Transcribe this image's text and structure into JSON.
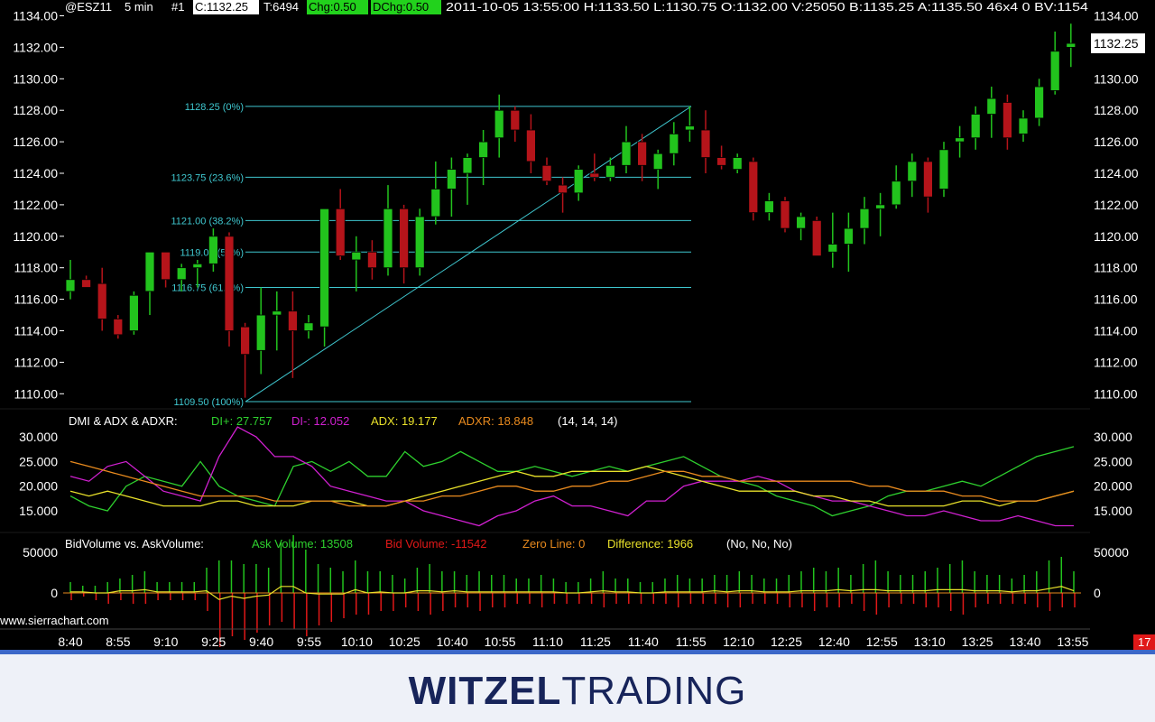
{
  "header": {
    "symbol": "@ESZ11",
    "interval": "5 min",
    "chart_no": "#1",
    "close": "C:1132.25",
    "trades": "T:6494",
    "chg": "Chg:0.50",
    "dchg": "DChg:0.50",
    "bar_info": "2011-10-05  13:55:00  H:1133.50  L:1130.75  O:1132.00  V:25050  B:1135.25  A:1135.50  46x4  0  BV:1154"
  },
  "current_price_label": "1132.25",
  "corner_badge": "17",
  "watermark": "www.sierrachart.com",
  "brand": {
    "part1": "WITZEL",
    "part2": "TRADING"
  },
  "colors": {
    "up": "#22c31d",
    "down": "#b5141a",
    "fib": "#3fc7cf",
    "di_plus": "#2ed02e",
    "di_minus": "#d020d0",
    "adx": "#e8e02a",
    "adxr": "#e88a1e"
  },
  "price_axis": {
    "ticks": [
      "1134.00",
      "1132.00",
      "1130.00",
      "1128.00",
      "1126.00",
      "1124.00",
      "1122.00",
      "1120.00",
      "1118.00",
      "1116.00",
      "1114.00",
      "1112.00",
      "1110.00"
    ]
  },
  "time_axis": {
    "labels": [
      "8:40",
      "8:55",
      "9:10",
      "9:25",
      "9:40",
      "9:55",
      "10:10",
      "10:25",
      "10:40",
      "10:55",
      "11:10",
      "11:25",
      "11:40",
      "11:55",
      "12:10",
      "12:25",
      "12:40",
      "12:55",
      "13:10",
      "13:25",
      "13:40",
      "13:55"
    ]
  },
  "fib_levels": [
    {
      "label": "1128.25 (0%)",
      "price": 1128.25
    },
    {
      "label": "1123.75 (23.6%)",
      "price": 1123.75
    },
    {
      "label": "1121.00 (38.2%)",
      "price": 1121.0
    },
    {
      "label": "1119.00 (50%)",
      "price": 1119.0
    },
    {
      "label": "1116.75 (61.8%)",
      "price": 1116.75
    },
    {
      "label": "1109.50 (100%)",
      "price": 1109.5
    }
  ],
  "dmi": {
    "title": "DMI & ADX & ADXR:",
    "di_plus": "DI+: 27.757",
    "di_minus": "DI-: 12.052",
    "adx": "ADX: 19.177",
    "adxr": "ADXR: 18.848",
    "params": "(14, 14, 14)",
    "ticks": [
      "30.000",
      "25.000",
      "20.000",
      "15.000"
    ]
  },
  "volume": {
    "title": "BidVolume vs. AskVolume:",
    "ask": "Ask Volume: 13508",
    "bid": "Bid Volume: -11542",
    "zero": "Zero Line: 0",
    "diff": "Difference: 1966",
    "params": "(No, No, No)",
    "ticks": [
      "50000",
      "0"
    ]
  },
  "chart_data": [
    {
      "type": "candlestick",
      "title": "@ESZ11 5 min",
      "ylim": [
        1109.5,
        1134.0
      ],
      "candles": [
        {
          "o": 1116.5,
          "h": 1118.5,
          "l": 1116.0,
          "c": 1117.25
        },
        {
          "o": 1117.25,
          "h": 1117.5,
          "l": 1116.75,
          "c": 1116.75
        },
        {
          "o": 1117.0,
          "h": 1118.0,
          "l": 1114.0,
          "c": 1114.75
        },
        {
          "o": 1114.75,
          "h": 1115.0,
          "l": 1113.5,
          "c": 1113.75
        },
        {
          "o": 1114.0,
          "h": 1116.5,
          "l": 1113.75,
          "c": 1116.25
        },
        {
          "o": 1116.5,
          "h": 1119.0,
          "l": 1115.0,
          "c": 1119.0
        },
        {
          "o": 1119.0,
          "h": 1119.0,
          "l": 1116.75,
          "c": 1117.25
        },
        {
          "o": 1117.25,
          "h": 1118.25,
          "l": 1116.5,
          "c": 1118.0
        },
        {
          "o": 1118.0,
          "h": 1118.5,
          "l": 1116.75,
          "c": 1118.25
        },
        {
          "o": 1118.25,
          "h": 1120.5,
          "l": 1117.75,
          "c": 1120.0
        },
        {
          "o": 1120.0,
          "h": 1120.25,
          "l": 1113.0,
          "c": 1114.0
        },
        {
          "o": 1114.25,
          "h": 1114.5,
          "l": 1109.75,
          "c": 1112.5
        },
        {
          "o": 1112.75,
          "h": 1116.75,
          "l": 1111.25,
          "c": 1115.0
        },
        {
          "o": 1115.0,
          "h": 1116.5,
          "l": 1112.75,
          "c": 1115.25
        },
        {
          "o": 1115.25,
          "h": 1116.5,
          "l": 1111.0,
          "c": 1114.0
        },
        {
          "o": 1114.0,
          "h": 1115.0,
          "l": 1113.5,
          "c": 1114.5
        },
        {
          "o": 1114.25,
          "h": 1121.75,
          "l": 1113.0,
          "c": 1121.75
        },
        {
          "o": 1121.75,
          "h": 1123.0,
          "l": 1118.5,
          "c": 1118.75
        },
        {
          "o": 1118.5,
          "h": 1120.0,
          "l": 1116.5,
          "c": 1119.0
        },
        {
          "o": 1119.0,
          "h": 1119.75,
          "l": 1117.25,
          "c": 1118.0
        },
        {
          "o": 1118.0,
          "h": 1123.25,
          "l": 1117.5,
          "c": 1121.75
        },
        {
          "o": 1121.75,
          "h": 1122.0,
          "l": 1117.0,
          "c": 1118.0
        },
        {
          "o": 1118.0,
          "h": 1121.75,
          "l": 1117.5,
          "c": 1121.25
        },
        {
          "o": 1121.25,
          "h": 1124.75,
          "l": 1120.75,
          "c": 1123.0
        },
        {
          "o": 1123.0,
          "h": 1125.0,
          "l": 1121.25,
          "c": 1124.25
        },
        {
          "o": 1124.0,
          "h": 1125.25,
          "l": 1122.0,
          "c": 1125.0
        },
        {
          "o": 1125.0,
          "h": 1126.75,
          "l": 1123.25,
          "c": 1126.0
        },
        {
          "o": 1126.25,
          "h": 1129.0,
          "l": 1125.0,
          "c": 1128.0
        },
        {
          "o": 1128.0,
          "h": 1128.25,
          "l": 1126.0,
          "c": 1126.75
        },
        {
          "o": 1126.75,
          "h": 1127.75,
          "l": 1124.0,
          "c": 1124.75
        },
        {
          "o": 1124.5,
          "h": 1125.0,
          "l": 1123.25,
          "c": 1123.5
        },
        {
          "o": 1123.25,
          "h": 1123.75,
          "l": 1121.5,
          "c": 1122.75
        },
        {
          "o": 1122.75,
          "h": 1124.5,
          "l": 1122.25,
          "c": 1124.25
        },
        {
          "o": 1124.0,
          "h": 1125.25,
          "l": 1123.5,
          "c": 1123.75
        },
        {
          "o": 1123.75,
          "h": 1125.0,
          "l": 1123.5,
          "c": 1124.5
        },
        {
          "o": 1124.5,
          "h": 1127.0,
          "l": 1124.0,
          "c": 1126.0
        },
        {
          "o": 1126.0,
          "h": 1126.5,
          "l": 1123.5,
          "c": 1124.5
        },
        {
          "o": 1124.25,
          "h": 1125.5,
          "l": 1123.0,
          "c": 1125.25
        },
        {
          "o": 1125.25,
          "h": 1127.25,
          "l": 1124.5,
          "c": 1126.5
        },
        {
          "o": 1126.75,
          "h": 1128.25,
          "l": 1126.0,
          "c": 1127.0
        },
        {
          "o": 1126.75,
          "h": 1128.0,
          "l": 1124.0,
          "c": 1125.0
        },
        {
          "o": 1125.0,
          "h": 1125.75,
          "l": 1124.25,
          "c": 1124.5
        },
        {
          "o": 1124.25,
          "h": 1125.25,
          "l": 1124.0,
          "c": 1125.0
        },
        {
          "o": 1124.75,
          "h": 1125.0,
          "l": 1121.0,
          "c": 1121.5
        },
        {
          "o": 1121.5,
          "h": 1122.75,
          "l": 1121.0,
          "c": 1122.25
        },
        {
          "o": 1122.25,
          "h": 1122.5,
          "l": 1120.25,
          "c": 1120.5
        },
        {
          "o": 1120.5,
          "h": 1121.5,
          "l": 1119.75,
          "c": 1121.25
        },
        {
          "o": 1121.0,
          "h": 1121.25,
          "l": 1118.75,
          "c": 1118.75
        },
        {
          "o": 1119.0,
          "h": 1121.5,
          "l": 1118.0,
          "c": 1119.5
        },
        {
          "o": 1119.5,
          "h": 1121.5,
          "l": 1117.75,
          "c": 1120.5
        },
        {
          "o": 1120.5,
          "h": 1122.5,
          "l": 1119.5,
          "c": 1121.75
        },
        {
          "o": 1121.75,
          "h": 1122.75,
          "l": 1120.0,
          "c": 1122.0
        },
        {
          "o": 1122.0,
          "h": 1124.5,
          "l": 1121.75,
          "c": 1123.5
        },
        {
          "o": 1123.5,
          "h": 1125.25,
          "l": 1122.5,
          "c": 1124.75
        },
        {
          "o": 1124.75,
          "h": 1125.0,
          "l": 1121.5,
          "c": 1122.5
        },
        {
          "o": 1123.0,
          "h": 1126.0,
          "l": 1122.5,
          "c": 1125.5
        },
        {
          "o": 1126.0,
          "h": 1127.0,
          "l": 1125.0,
          "c": 1126.25
        },
        {
          "o": 1126.25,
          "h": 1128.25,
          "l": 1125.5,
          "c": 1127.75
        },
        {
          "o": 1127.75,
          "h": 1129.5,
          "l": 1126.25,
          "c": 1128.75
        },
        {
          "o": 1128.5,
          "h": 1129.0,
          "l": 1125.5,
          "c": 1126.25
        },
        {
          "o": 1126.5,
          "h": 1128.0,
          "l": 1126.0,
          "c": 1127.5
        },
        {
          "o": 1127.5,
          "h": 1130.0,
          "l": 1127.0,
          "c": 1129.5
        },
        {
          "o": 1129.25,
          "h": 1133.0,
          "l": 1129.0,
          "c": 1131.75
        },
        {
          "o": 1132.0,
          "h": 1133.5,
          "l": 1130.75,
          "c": 1132.25
        }
      ]
    },
    {
      "type": "line",
      "title": "DMI & ADX & ADXR",
      "ylim": [
        12,
        32
      ],
      "series": [
        {
          "name": "DI+",
          "values": [
            18,
            16,
            15,
            20,
            22,
            21,
            20,
            25,
            20,
            18,
            17,
            16,
            24,
            25,
            23,
            25,
            22,
            22,
            27,
            24,
            25,
            27,
            25,
            23,
            23,
            24,
            23,
            22,
            23,
            24,
            23,
            24,
            25,
            26,
            24,
            22,
            21,
            20,
            18,
            17,
            16,
            14,
            15,
            16,
            18,
            19,
            19,
            20,
            21,
            20,
            22,
            24,
            26,
            27,
            28
          ]
        },
        {
          "name": "DI-",
          "values": [
            22,
            21,
            24,
            25,
            22,
            19,
            18,
            17,
            26,
            32,
            30,
            26,
            26,
            24,
            20,
            19,
            18,
            17,
            17,
            15,
            14,
            13,
            12,
            14,
            15,
            17,
            18,
            16,
            16,
            15,
            14,
            17,
            17,
            20,
            21,
            21,
            21,
            22,
            21,
            19,
            18,
            17,
            17,
            16,
            15,
            14,
            14,
            15,
            14,
            13,
            13,
            14,
            13,
            12,
            12
          ]
        },
        {
          "name": "ADX",
          "values": [
            19,
            18,
            19,
            18,
            17,
            16,
            16,
            16,
            17,
            17,
            16,
            16,
            16,
            17,
            17,
            17,
            16,
            16,
            17,
            18,
            19,
            20,
            21,
            22,
            23,
            22,
            22,
            23,
            23,
            23,
            23,
            24,
            23,
            22,
            21,
            20,
            19,
            19,
            19,
            19,
            18,
            18,
            17,
            17,
            16,
            16,
            16,
            16,
            17,
            17,
            16,
            17,
            17,
            18,
            19
          ]
        },
        {
          "name": "ADXR",
          "values": [
            25,
            24,
            23,
            22,
            21,
            20,
            19,
            18,
            18,
            18,
            18,
            17,
            17,
            17,
            17,
            16,
            16,
            16,
            17,
            17,
            18,
            18,
            19,
            20,
            20,
            19,
            19,
            20,
            20,
            21,
            21,
            22,
            23,
            23,
            22,
            22,
            21,
            21,
            21,
            21,
            21,
            21,
            21,
            20,
            20,
            19,
            19,
            19,
            18,
            18,
            17,
            17,
            17,
            18,
            19
          ]
        }
      ]
    },
    {
      "type": "bar",
      "title": "BidVolume vs. AskVolume",
      "ylim": [
        -50000,
        50000
      ],
      "series": [
        {
          "name": "Ask Volume",
          "values": [
            3,
            2,
            2,
            3,
            4,
            5,
            6,
            3,
            3,
            3,
            3,
            7,
            9,
            9,
            8,
            8,
            7,
            14,
            16,
            12,
            8,
            7,
            6,
            9,
            6,
            6,
            5,
            4,
            7,
            8,
            6,
            6,
            5,
            6,
            5,
            5,
            4,
            4,
            5,
            4,
            3,
            3,
            4,
            6,
            4,
            4,
            3,
            3,
            4,
            5,
            4,
            4,
            5,
            5,
            6,
            5,
            4,
            4,
            5,
            6,
            7,
            6,
            7,
            5,
            8,
            9,
            6,
            5,
            5,
            6,
            7,
            8,
            9,
            6,
            5,
            5,
            4,
            5,
            6,
            9,
            10,
            6
          ]
        },
        {
          "name": "Bid Volume",
          "values": [
            -2,
            -1,
            -2,
            -3,
            -2,
            -3,
            -3,
            -2,
            -2,
            -2,
            -2,
            -5,
            -15,
            -12,
            -13,
            -11,
            -9,
            -8,
            -10,
            -12,
            -9,
            -8,
            -7,
            -6,
            -6,
            -5,
            -5,
            -4,
            -5,
            -6,
            -5,
            -4,
            -4,
            -5,
            -4,
            -4,
            -3,
            -3,
            -4,
            -3,
            -3,
            -3,
            -3,
            -4,
            -3,
            -3,
            -3,
            -3,
            -3,
            -4,
            -3,
            -3,
            -3,
            -4,
            -4,
            -3,
            -3,
            -3,
            -4,
            -4,
            -5,
            -4,
            -4,
            -3,
            -5,
            -6,
            -4,
            -3,
            -3,
            -4,
            -4,
            -5,
            -6,
            -4,
            -3,
            -3,
            -3,
            -3,
            -4,
            -5,
            -4,
            -4
          ]
        }
      ]
    }
  ]
}
